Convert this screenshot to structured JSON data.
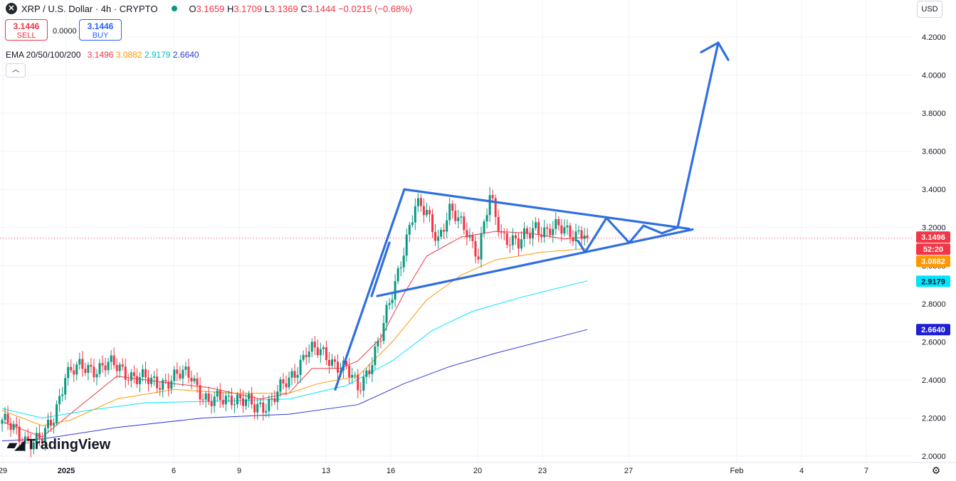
{
  "header": {
    "symbol_title": "XRP / U.S. Dollar · 4h · CRYPTO",
    "ohlc": [
      {
        "k": "O",
        "v": "3.1659"
      },
      {
        "k": "H",
        "v": "3.1709"
      },
      {
        "k": "L",
        "v": "3.1369"
      },
      {
        "k": "C",
        "v": "3.1444"
      },
      {
        "k": "",
        "v": "−0.0215 (−0.68%)"
      }
    ],
    "sell_price": "3.1446",
    "sell_label": "SELL",
    "buy_price": "3.1446",
    "buy_label": "BUY",
    "spread": "0.0000",
    "ema_label": "EMA 20/50/100/200",
    "ema_values": [
      "3.1496",
      "3.0882",
      "2.9179",
      "2.6640"
    ],
    "collapse_icon": "chevron-up-icon",
    "currency_button": "USD",
    "watermark": "TradingView"
  },
  "colors": {
    "up": "#089981",
    "down": "#f23645",
    "ema20": "#f23645",
    "ema50": "#ff9800",
    "ema100": "#00e5ff",
    "ema200": "#2e3ad6",
    "pattern": "#2f6fe0"
  },
  "chart_data": {
    "type": "candlestick",
    "y_axis_labels": [
      "4.2000",
      "4.0000",
      "3.8000",
      "3.6000",
      "3.4000",
      "3.2000",
      "3.0000",
      "2.8000",
      "2.6000",
      "2.4000",
      "2.2000",
      "2.0000"
    ],
    "ylim": [
      1.98,
      4.3
    ],
    "x_axis_labels": [
      {
        "text": "29",
        "bold": false
      },
      {
        "text": "2025",
        "bold": true
      },
      {
        "text": "6",
        "bold": false
      },
      {
        "text": "9",
        "bold": false
      },
      {
        "text": "13",
        "bold": false
      },
      {
        "text": "16",
        "bold": false
      },
      {
        "text": "20",
        "bold": false
      },
      {
        "text": "23",
        "bold": false
      },
      {
        "text": "27",
        "bold": false
      },
      {
        "text": "Feb",
        "bold": false
      },
      {
        "text": "4",
        "bold": false
      },
      {
        "text": "7",
        "bold": false
      }
    ],
    "price_tags": [
      {
        "text": "3.1496",
        "value": 3.1496,
        "bg": "#f23645",
        "fg": "#ffffff"
      },
      {
        "text": "52:20",
        "value": 3.1446,
        "bg": "#f23645",
        "fg": "#ffffff",
        "below": true
      },
      {
        "text": "3.0882",
        "value": 3.0882,
        "bg": "#ff9800",
        "fg": "#ffffff"
      },
      {
        "text": "2.9179",
        "value": 2.9179,
        "bg": "#00e5ff",
        "fg": "#131722"
      },
      {
        "text": "2.6640",
        "value": 2.664,
        "bg": "#1f1fd6",
        "fg": "#ffffff"
      }
    ],
    "current_price": 3.1444,
    "candle_anchors": [
      [
        0,
        2.19
      ],
      [
        6,
        2.1
      ],
      [
        14,
        2.08
      ],
      [
        18,
        2.2
      ],
      [
        22,
        2.44
      ],
      [
        30,
        2.46
      ],
      [
        36,
        2.48
      ],
      [
        44,
        2.44
      ],
      [
        52,
        2.38
      ],
      [
        60,
        2.41
      ],
      [
        66,
        2.43
      ],
      [
        72,
        2.27
      ],
      [
        80,
        2.32
      ],
      [
        88,
        2.25
      ],
      [
        94,
        2.3
      ],
      [
        100,
        2.39
      ],
      [
        106,
        2.56
      ],
      [
        114,
        2.52
      ],
      [
        120,
        2.45
      ],
      [
        124,
        2.35
      ],
      [
        128,
        2.48
      ],
      [
        132,
        2.62
      ],
      [
        136,
        2.85
      ],
      [
        140,
        3.1
      ],
      [
        144,
        3.3
      ],
      [
        148,
        3.28
      ],
      [
        152,
        3.15
      ],
      [
        156,
        3.27
      ],
      [
        162,
        3.2
      ],
      [
        166,
        3.05
      ],
      [
        170,
        3.35
      ],
      [
        174,
        3.18
      ],
      [
        180,
        3.1
      ],
      [
        186,
        3.22
      ],
      [
        190,
        3.17
      ],
      [
        196,
        3.2
      ],
      [
        204,
        3.15
      ]
    ],
    "ema_series": [
      {
        "name": "EMA 20",
        "value": 3.1496,
        "points": [
          [
            0,
            2.18
          ],
          [
            14,
            2.1
          ],
          [
            22,
            2.2
          ],
          [
            40,
            2.42
          ],
          [
            60,
            2.38
          ],
          [
            72,
            2.36
          ],
          [
            90,
            2.3
          ],
          [
            100,
            2.33
          ],
          [
            108,
            2.46
          ],
          [
            118,
            2.46
          ],
          [
            124,
            2.5
          ],
          [
            132,
            2.62
          ],
          [
            140,
            2.85
          ],
          [
            148,
            3.05
          ],
          [
            160,
            3.15
          ],
          [
            172,
            3.18
          ],
          [
            184,
            3.17
          ],
          [
            196,
            3.14
          ],
          [
            204,
            3.15
          ]
        ]
      },
      {
        "name": "EMA 50",
        "value": 3.0882,
        "points": [
          [
            0,
            2.24
          ],
          [
            14,
            2.16
          ],
          [
            24,
            2.19
          ],
          [
            40,
            2.3
          ],
          [
            60,
            2.35
          ],
          [
            80,
            2.33
          ],
          [
            100,
            2.33
          ],
          [
            110,
            2.38
          ],
          [
            124,
            2.42
          ],
          [
            136,
            2.6
          ],
          [
            148,
            2.82
          ],
          [
            160,
            2.95
          ],
          [
            172,
            3.03
          ],
          [
            188,
            3.07
          ],
          [
            204,
            3.09
          ]
        ]
      },
      {
        "name": "EMA 100",
        "value": 2.9179,
        "points": [
          [
            0,
            2.25
          ],
          [
            14,
            2.2
          ],
          [
            30,
            2.24
          ],
          [
            50,
            2.28
          ],
          [
            80,
            2.29
          ],
          [
            100,
            2.3
          ],
          [
            120,
            2.37
          ],
          [
            136,
            2.5
          ],
          [
            150,
            2.66
          ],
          [
            164,
            2.76
          ],
          [
            180,
            2.83
          ],
          [
            196,
            2.89
          ],
          [
            204,
            2.92
          ]
        ]
      },
      {
        "name": "EMA 200",
        "value": 2.664,
        "points": [
          [
            0,
            2.08
          ],
          [
            14,
            2.09
          ],
          [
            40,
            2.15
          ],
          [
            70,
            2.2
          ],
          [
            100,
            2.22
          ],
          [
            124,
            2.27
          ],
          [
            140,
            2.38
          ],
          [
            156,
            2.47
          ],
          [
            172,
            2.54
          ],
          [
            190,
            2.61
          ],
          [
            204,
            2.664
          ]
        ]
      }
    ],
    "pattern_lines": [
      {
        "name": "flagpole-line",
        "points": [
          [
            471,
            2.35
          ],
          [
            568,
            3.4
          ]
        ]
      },
      {
        "name": "pennant-upper-line",
        "points": [
          [
            568,
            3.4
          ],
          [
            968,
            3.193
          ]
        ]
      },
      {
        "name": "pennant-lower-line",
        "points": [
          [
            530,
            2.84
          ],
          [
            973,
            3.19
          ]
        ]
      },
      {
        "name": "pennant-left-line",
        "points": [
          [
            522,
            2.84
          ],
          [
            547,
            3.12
          ]
        ]
      },
      {
        "name": "projected-zigzag-line",
        "points": [
          [
            812,
            3.13
          ],
          [
            822,
            3.07
          ],
          [
            852,
            3.25
          ],
          [
            884,
            3.12
          ],
          [
            904,
            3.21
          ],
          [
            930,
            3.17
          ],
          [
            952,
            3.2
          ]
        ]
      },
      {
        "name": "breakout-arrow-line",
        "points": [
          [
            952,
            3.2
          ],
          [
            1009,
            4.17
          ]
        ]
      },
      {
        "name": "arrow-head-left",
        "points": [
          [
            1009,
            4.17
          ],
          [
            985,
            4.12
          ]
        ]
      },
      {
        "name": "arrow-head-right",
        "points": [
          [
            1009,
            4.17
          ],
          [
            1023,
            4.08
          ]
        ]
      }
    ]
  }
}
